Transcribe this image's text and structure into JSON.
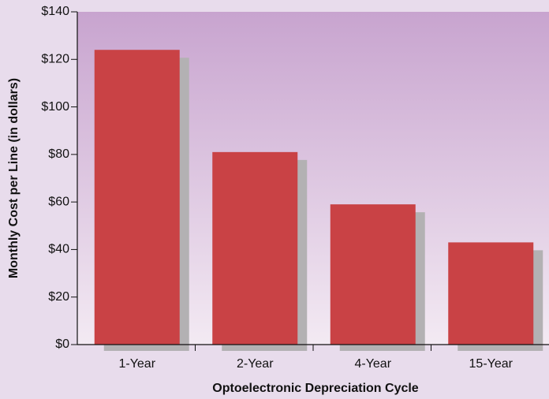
{
  "chart_data": {
    "type": "bar",
    "x_label": "Optoelectronic Depreciation Cycle",
    "y_label": "Monthly Cost per Line (in dollars)",
    "categories": [
      "1-Year",
      "2-Year",
      "4-Year",
      "15-Year"
    ],
    "values": [
      124,
      81,
      59,
      43
    ],
    "color": "#c94245",
    "ylim": [
      0,
      140
    ],
    "yticks": [
      {
        "value": 0,
        "label": "$0"
      },
      {
        "value": 20,
        "label": "$20"
      },
      {
        "value": 40,
        "label": "$40"
      },
      {
        "value": 60,
        "label": "$60"
      },
      {
        "value": 80,
        "label": "$80"
      },
      {
        "value": 100,
        "label": "$100"
      },
      {
        "value": 120,
        "label": "$120"
      },
      {
        "value": 140,
        "label": "$140"
      }
    ],
    "grid": false
  }
}
